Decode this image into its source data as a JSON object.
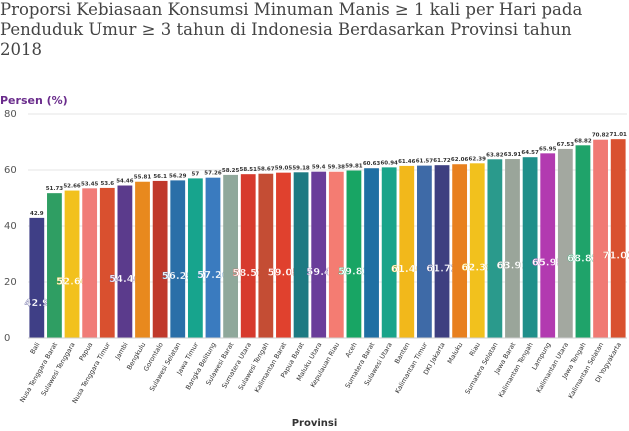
{
  "title_lines": [
    "Proporsi Kebiasaan Konsumsi Minuman Manis ≥ 1 kali per Hari pada",
    "Penduduk Umur ≥ 3 tahun di Indonesia Berdasarkan Provinsi tahun",
    "2018"
  ],
  "chart_data": {
    "type": "bar",
    "title": "Proporsi Kebiasaan Konsumsi Minuman Manis ≥ 1 kali per Hari pada Penduduk Umur ≥ 3 tahun di Indonesia Berdasarkan Provinsi tahun 2018",
    "ylabel": "Persen (%)",
    "xlabel": "Provinsi",
    "ylim": [
      0,
      80
    ],
    "yticks": [
      0,
      20,
      40,
      60,
      80
    ],
    "grid": true,
    "categories": [
      "Bali",
      "Nusa Tenggara Barat",
      "Sulawesi Tenggara",
      "Papua",
      "Nusa Tenggara Timur",
      "Jambi",
      "Bengkulu",
      "Gorontalo",
      "Sulawesi Selatan",
      "Jawa Timur",
      "Bangka Belitung",
      "Sulawesi Barat",
      "Sumatera Utara",
      "Sulawesi Tengah",
      "Kalimantan Barat",
      "Papua Barat",
      "Maluku Utara",
      "Kepulauan Riau",
      "Aceh",
      "Sumatera Barat",
      "Sulawesi Utara",
      "Banten",
      "Kalimantan Timur",
      "DKI Jakarta",
      "Maluku",
      "Riau",
      "Sumatera Selatan",
      "Jawa Barat",
      "Kalimantan Tengah",
      "Lampung",
      "Kalimantan Utara",
      "Jawa Tengah",
      "Kalimantan Selatan",
      "DI Yogyakarta"
    ],
    "values": [
      42.9,
      51.73,
      52.66,
      53.45,
      53.6,
      54.46,
      55.81,
      56.1,
      56.29,
      57,
      57.26,
      58.25,
      58.51,
      58.67,
      59.05,
      59.18,
      59.4,
      59.38,
      59.81,
      60.63,
      60.94,
      61.46,
      61.57,
      61.72,
      62.06,
      62.39,
      63.82,
      63.91,
      64.57,
      65.95,
      67.53,
      68.82,
      70.82,
      71.01
    ],
    "value_labels": [
      "42.9",
      "51.73",
      "52.66",
      "53.45",
      "53.6",
      "54.46",
      "55.81",
      "56.1",
      "56.29",
      "57",
      "57.26",
      "58.25",
      "58.51",
      "58.67",
      "59.05",
      "59.18",
      "59.4",
      "59.38",
      "59.81",
      "60.63",
      "60.94",
      "61.46",
      "61.57",
      "61.72",
      "62.06",
      "62.39",
      "63.82",
      "63.91",
      "64.57",
      "65.95",
      "67.53",
      "68.82",
      "70.82",
      "71.01"
    ],
    "inner_labels": [
      "42.9",
      "",
      "52.66",
      "",
      "",
      "54.46",
      "",
      "",
      "56.29",
      "",
      "57.26",
      "",
      "58.51",
      "",
      "59.05",
      "",
      "59.4",
      "",
      "59.81",
      "",
      "",
      "61.46",
      "",
      "61.72",
      "",
      "62.39",
      "",
      "63.91",
      "",
      "65.95",
      "",
      "68.82",
      "",
      "71.01"
    ],
    "colors": [
      "#3f3f86",
      "#2f9e63",
      "#f2c11d",
      "#f07c78",
      "#d9502f",
      "#5b3b8c",
      "#e8891e",
      "#c0392b",
      "#2a6fa8",
      "#17a48d",
      "#3a7bbf",
      "#8fa89b",
      "#d73a2d",
      "#c44d34",
      "#e0412e",
      "#1d7a82",
      "#6a3d9a",
      "#f47c72",
      "#18a564",
      "#1f6fa3",
      "#19a48a",
      "#f2b81b",
      "#3e6aa7",
      "#3e3f80",
      "#e8801e",
      "#f2c11d",
      "#2a9a8c",
      "#9aa59a",
      "#1f8f8a",
      "#b23ab0",
      "#a3a8a0",
      "#1fa36a",
      "#f07a74",
      "#d9512f"
    ]
  }
}
